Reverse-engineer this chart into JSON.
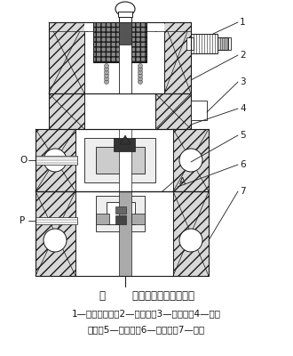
{
  "title_line1": "图        二位三通截止式电磁阀",
  "title_line2": "1—先导排空口；2—电磁头；3—动铁芯；4—手动",
  "title_line3": "装置；5—先导口；6—阀盘组；7—阀体",
  "bg_color": "#ffffff",
  "dc": "#1a1a1a",
  "fig_width": 3.3,
  "fig_height": 4.0,
  "dpi": 100
}
